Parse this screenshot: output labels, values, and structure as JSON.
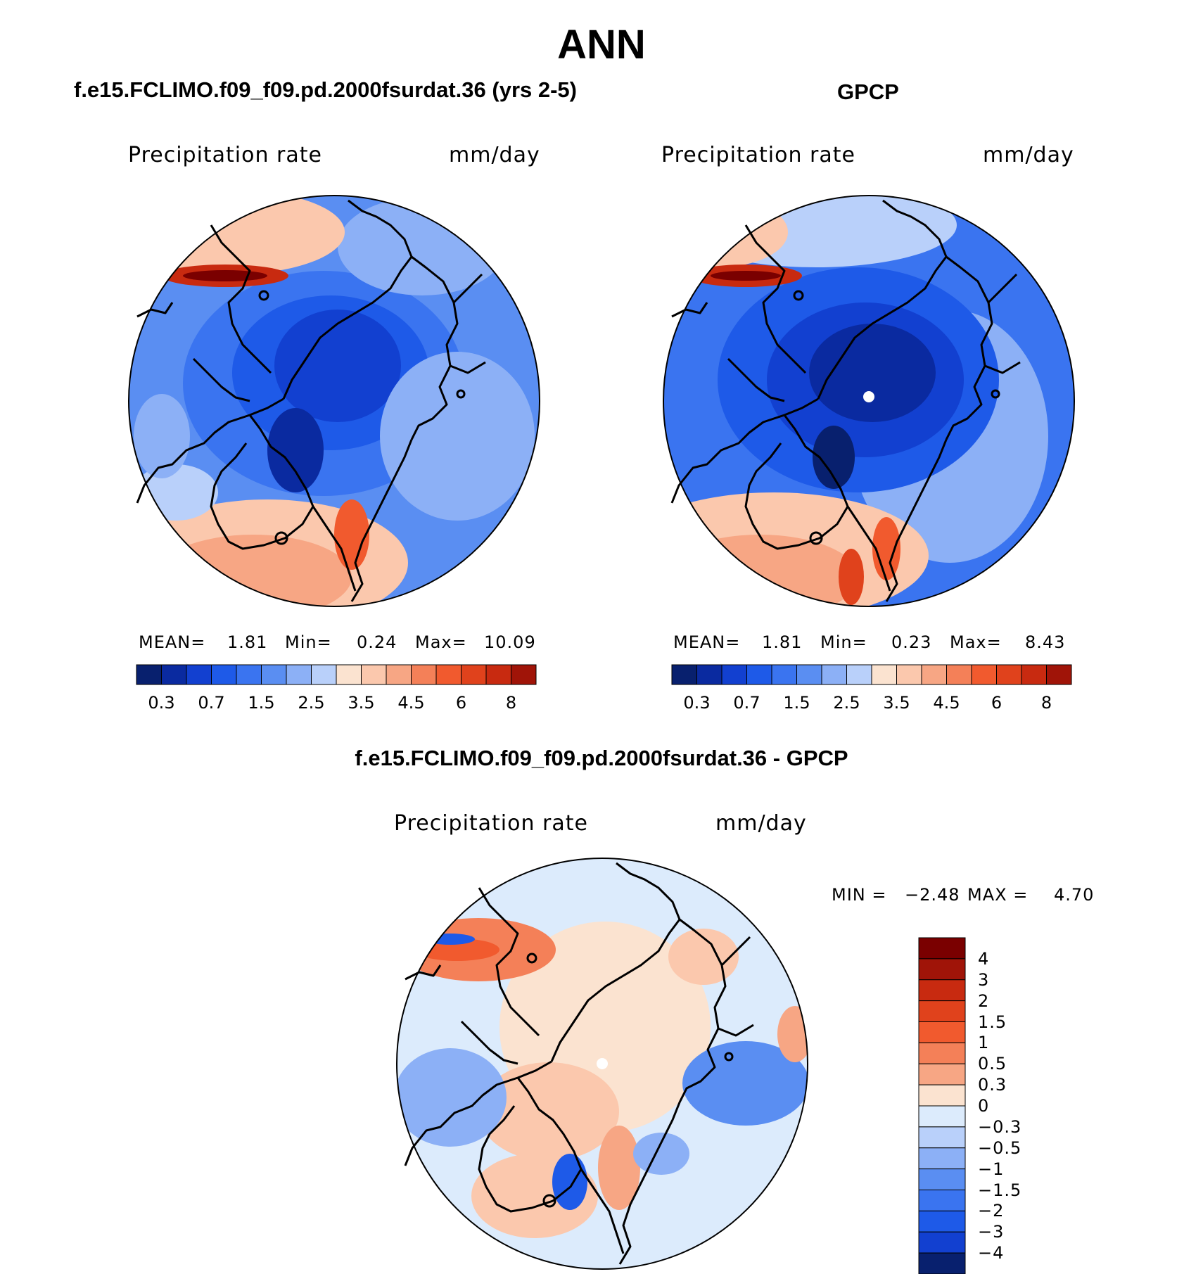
{
  "figure": {
    "season": "ANN"
  },
  "colors": {
    "cool": [
      "#08206e",
      "#0a2aa0",
      "#1240d0",
      "#1e5ae8",
      "#3a74f0",
      "#5a8ef2",
      "#8cb0f6",
      "#b9d0fa",
      "#dcebfc"
    ],
    "warm": [
      "#fbe3d0",
      "#fbc8ad",
      "#f7a684",
      "#f48058",
      "#f15a2e",
      "#e0421c",
      "#c82a10",
      "#a01408",
      "#7a0000"
    ],
    "coastline": "#000000"
  },
  "panels": {
    "model": {
      "subtitle": "f.e15.FCLIMO.f09_f09.pd.2000fsurdat.36 (yrs 2-5)",
      "variable": "Precipitation rate",
      "units": "mm/day",
      "mean_label": "MEAN=",
      "mean": "1.81",
      "min_label": "Min=",
      "min": "0.24",
      "max_label": "Max=",
      "max": "10.09"
    },
    "obs": {
      "subtitle": "GPCP",
      "variable": "Precipitation rate",
      "units": "mm/day",
      "mean_label": "MEAN=",
      "mean": "1.81",
      "min_label": "Min=",
      "min": "0.23",
      "max_label": "Max=",
      "max": "8.43"
    },
    "diff": {
      "subtitle": "f.e15.FCLIMO.f09_f09.pd.2000fsurdat.36 - GPCP",
      "variable": "Precipitation rate",
      "units": "mm/day",
      "min_label": "MIN =",
      "min": "−2.48",
      "max_label": "MAX =",
      "max": "4.70"
    }
  },
  "chart_data": [
    {
      "type": "heatmap",
      "projection": "polar stereographic, north pole",
      "title": "f.e15.FCLIMO.f09_f09.pd.2000fsurdat.36 (yrs 2-5)",
      "variable": "Precipitation rate",
      "units": "mm/day",
      "stats": {
        "mean": 1.81,
        "min": 0.24,
        "max": 10.09
      },
      "colorbar_levels": [
        0.2,
        0.3,
        0.5,
        0.7,
        1,
        1.5,
        2,
        2.5,
        3,
        3.5,
        4,
        4.5,
        5,
        6,
        7,
        8
      ],
      "colorbar_tick_labels": [
        "0.3",
        "0.7",
        "1.5",
        "2.5",
        "3.5",
        "4.5",
        "6",
        "8"
      ]
    },
    {
      "type": "heatmap",
      "projection": "polar stereographic, north pole",
      "title": "GPCP",
      "variable": "Precipitation rate",
      "units": "mm/day",
      "stats": {
        "mean": 1.81,
        "min": 0.23,
        "max": 8.43
      },
      "colorbar_levels": [
        0.2,
        0.3,
        0.5,
        0.7,
        1,
        1.5,
        2,
        2.5,
        3,
        3.5,
        4,
        4.5,
        5,
        6,
        7,
        8
      ],
      "colorbar_tick_labels": [
        "0.3",
        "0.7",
        "1.5",
        "2.5",
        "3.5",
        "4.5",
        "6",
        "8"
      ]
    },
    {
      "type": "heatmap",
      "projection": "polar stereographic, north pole",
      "title": "f.e15.FCLIMO.f09_f09.pd.2000fsurdat.36 - GPCP",
      "variable": "Precipitation rate",
      "units": "mm/day",
      "stats": {
        "min": -2.48,
        "max": 4.7
      },
      "colorbar_levels": [
        -4,
        -3,
        -2,
        -1.5,
        -1,
        -0.5,
        -0.3,
        0,
        0.3,
        0.5,
        1,
        1.5,
        2,
        3,
        4
      ],
      "colorbar_tick_labels": [
        "4",
        "3",
        "2",
        "1.5",
        "1",
        "0.5",
        "0.3",
        "0",
        "−0.3",
        "−0.5",
        "−1",
        "−1.5",
        "−2",
        "−3",
        "−4"
      ]
    }
  ]
}
